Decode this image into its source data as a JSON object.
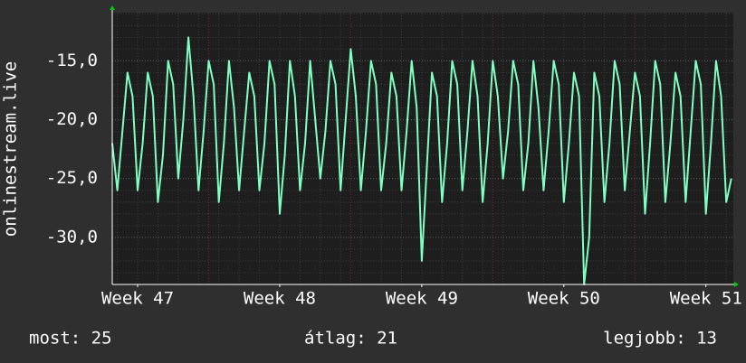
{
  "chart_data": {
    "type": "line",
    "ylabel": "onlinestream.live",
    "x": [
      -1.25,
      -1,
      -0.75,
      -0.5,
      -0.25,
      0,
      0.25,
      0.5,
      0.75,
      1,
      1.25,
      1.5,
      1.75,
      2,
      2.25,
      2.5,
      2.75,
      3,
      3.25,
      3.5,
      3.75,
      4,
      4.25,
      4.5,
      4.75,
      5,
      5.25,
      5.5,
      5.75,
      6,
      6.25,
      6.5,
      6.75,
      7,
      7.25,
      7.5,
      7.75,
      8,
      8.25,
      8.5,
      8.75,
      9,
      9.25,
      9.5,
      9.75,
      10,
      10.25,
      10.5,
      10.75,
      11,
      11.25,
      11.5,
      11.75,
      12,
      12.25,
      12.5,
      12.75,
      13,
      13.25,
      13.5,
      13.75,
      14,
      14.25,
      14.5,
      14.75,
      15,
      15.25,
      15.5,
      15.75,
      16,
      16.25,
      16.5,
      16.75,
      17,
      17.25,
      17.5,
      17.75,
      18,
      18.25,
      18.5,
      18.75,
      19,
      19.25,
      19.5,
      19.75,
      20,
      20.25,
      20.5,
      20.75,
      21,
      21.25,
      21.5,
      21.75,
      22,
      22.25,
      22.5,
      22.75,
      23,
      23.25,
      23.5,
      23.75,
      24,
      24.25,
      24.5,
      24.75,
      25,
      25.25,
      25.5,
      25.75,
      26,
      26.25,
      26.5,
      26.75,
      27,
      27.25,
      27.5,
      27.75,
      28,
      28.25,
      28.5,
      28.75,
      29,
      29.25
    ],
    "series": [
      {
        "color": "#80ffc0",
        "values": [
          -22,
          -26,
          -21,
          -16,
          -18,
          -26,
          -22,
          -16,
          -18,
          -27,
          -23,
          -15,
          -17,
          -25,
          -20,
          -13,
          -18,
          -26,
          -21,
          -15,
          -17,
          -27,
          -22,
          -15,
          -19,
          -26,
          -21,
          -16,
          -18,
          -26,
          -22,
          -15,
          -17,
          -28,
          -23,
          -15,
          -18,
          -26,
          -22,
          -15,
          -20,
          -25,
          -21,
          -15,
          -17,
          -26,
          -20,
          -14,
          -18,
          -26,
          -21,
          -15,
          -17,
          -26,
          -22,
          -16,
          -18,
          -26,
          -21,
          -15,
          -19,
          -32,
          -24,
          -16,
          -18,
          -27,
          -22,
          -15,
          -17,
          -26,
          -21,
          -15,
          -18,
          -27,
          -22,
          -15,
          -18,
          -25,
          -21,
          -15,
          -17,
          -26,
          -22,
          -15,
          -19,
          -26,
          -21,
          -15,
          -17,
          -27,
          -22,
          -16,
          -18,
          -34,
          -30,
          -16,
          -18,
          -27,
          -22,
          -15,
          -17,
          -26,
          -21,
          -16,
          -18,
          -28,
          -22,
          -15,
          -17,
          -27,
          -22,
          -16,
          -18,
          -27,
          -21,
          -15,
          -17,
          -28,
          -22,
          -15,
          -18,
          -27,
          -25
        ]
      }
    ],
    "xlim": [
      -1.25,
      29.35
    ],
    "xticks": [
      {
        "value": 0,
        "label": "Week 47"
      },
      {
        "value": 7,
        "label": "Week 48"
      },
      {
        "value": 14,
        "label": "Week 49"
      },
      {
        "value": 21,
        "label": "Week 50"
      },
      {
        "value": 28,
        "label": "Week 51"
      }
    ],
    "ylim": [
      -34,
      -10.9
    ],
    "yticks": [
      {
        "value": -15,
        "label": "-15,0"
      },
      {
        "value": -20,
        "label": "-20,0"
      },
      {
        "value": -25,
        "label": "-25,0"
      },
      {
        "value": -30,
        "label": "-30,0"
      }
    ],
    "grid": true,
    "stats": [
      "most: 25",
      "átlag: 21",
      "legjobb: 13"
    ]
  }
}
